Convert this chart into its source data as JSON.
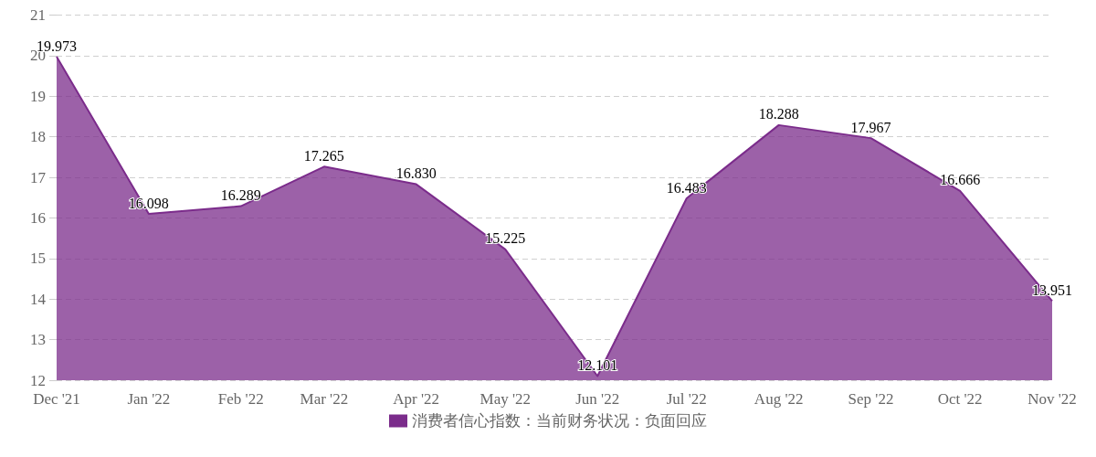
{
  "chart_data": {
    "type": "area",
    "x": [
      "2021-12",
      "2022-01",
      "2022-02",
      "2022-03",
      "2022-04",
      "2022-05",
      "2022-06",
      "2022-07",
      "2022-08",
      "2022-09",
      "2022-10",
      "2022-11"
    ],
    "series": [
      {
        "name": "消费者信心指数：当前财务状况：负面回应",
        "color": "#7b2c8b",
        "values": [
          19.973,
          16.098,
          16.289,
          17.265,
          16.83,
          15.225,
          12.101,
          16.483,
          18.288,
          17.967,
          16.666,
          13.951
        ],
        "value_labels": [
          "19.973",
          "16.098",
          "16.289",
          "17.265",
          "16.830",
          "15.225",
          "12.101",
          "16.483",
          "18.288",
          "17.967",
          "16.666",
          "13.951"
        ]
      }
    ],
    "xlim": [
      "2021-12",
      "2022-11"
    ],
    "xticks": [
      {
        "value": "2021-12",
        "label": "Dec '21"
      },
      {
        "value": "2022-01",
        "label": "Jan '22"
      },
      {
        "value": "2022-02",
        "label": "Feb '22"
      },
      {
        "value": "2022-03",
        "label": "Mar '22"
      },
      {
        "value": "2022-04",
        "label": "Apr '22"
      },
      {
        "value": "2022-05",
        "label": "May '22"
      },
      {
        "value": "2022-06",
        "label": "Jun '22"
      },
      {
        "value": "2022-07",
        "label": "Jul '22"
      },
      {
        "value": "2022-08",
        "label": "Aug '22"
      },
      {
        "value": "2022-09",
        "label": "Sep '22"
      },
      {
        "value": "2022-10",
        "label": "Oct '22"
      },
      {
        "value": "2022-11",
        "label": "Nov '22"
      }
    ],
    "ylim": [
      12,
      21
    ],
    "yticks": [
      12,
      13,
      14,
      15,
      16,
      17,
      18,
      19,
      20,
      21
    ],
    "grid": "y",
    "legend": "bottom",
    "marker": "none"
  }
}
